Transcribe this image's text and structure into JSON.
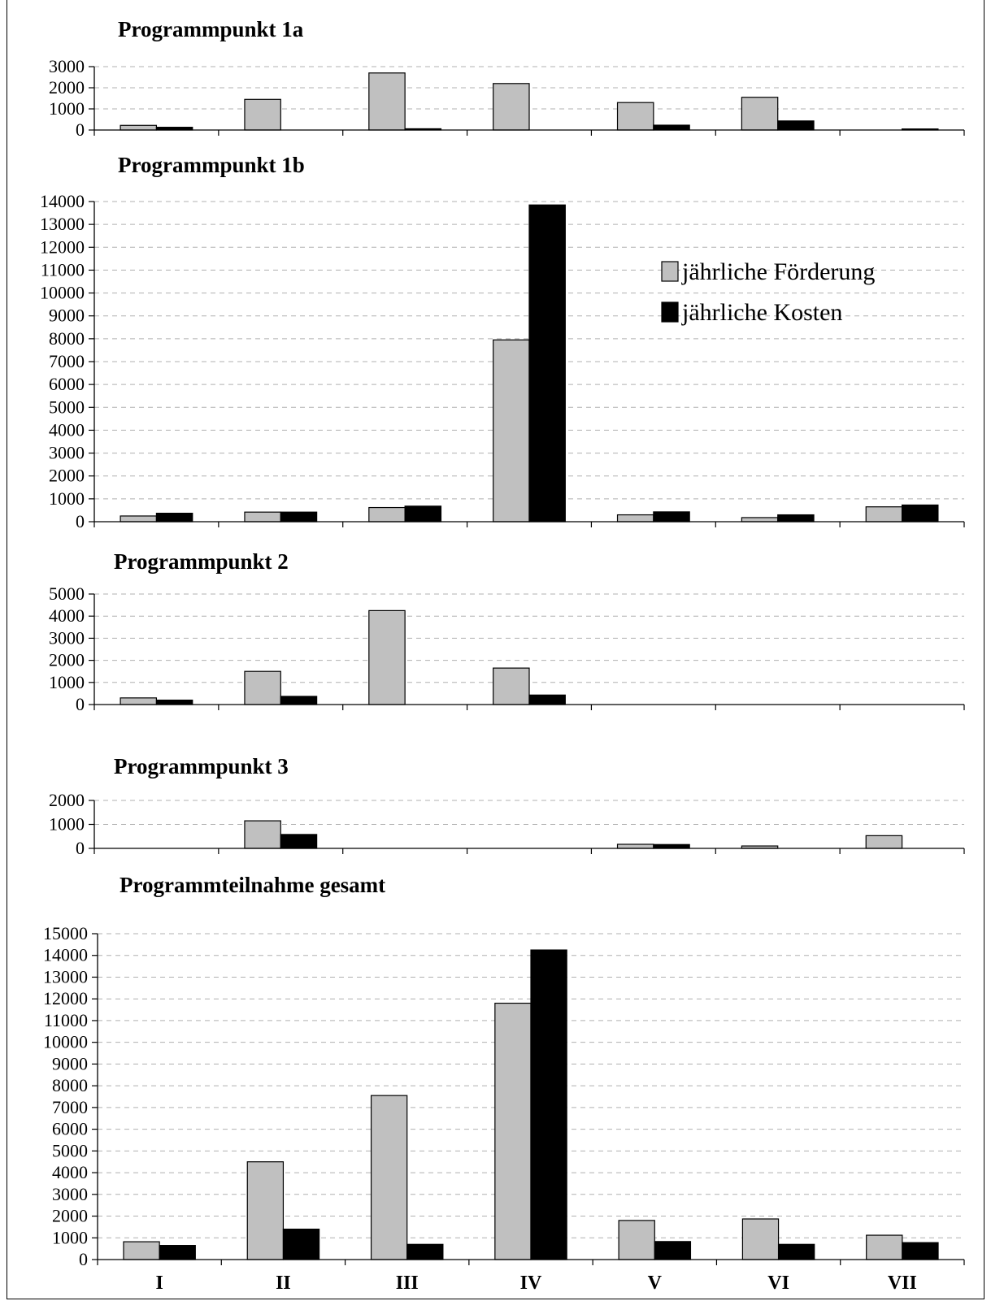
{
  "legend": {
    "items": [
      {
        "label": "jährliche Förderung",
        "color": "#c0c0c0"
      },
      {
        "label": "jährliche Kosten",
        "color": "#000000"
      }
    ],
    "placement": "inside-right of panel 2"
  },
  "chart_data": [
    {
      "type": "bar",
      "title": "Programmpunkt 1a",
      "categories": [
        "I",
        "II",
        "III",
        "IV",
        "V",
        "VI",
        "VII"
      ],
      "series": [
        {
          "name": "jährliche Förderung",
          "values": [
            220,
            1450,
            2700,
            2200,
            1300,
            1550,
            0
          ]
        },
        {
          "name": "jährliche Kosten",
          "values": [
            130,
            0,
            60,
            0,
            230,
            430,
            50
          ]
        }
      ],
      "ylim": [
        0,
        3000
      ],
      "yticks": [
        0,
        1000,
        2000,
        3000
      ],
      "grid": true
    },
    {
      "type": "bar",
      "title": "Programmpunkt 1b",
      "categories": [
        "I",
        "II",
        "III",
        "IV",
        "V",
        "VI",
        "VII"
      ],
      "series": [
        {
          "name": "jährliche Förderung",
          "values": [
            250,
            420,
            620,
            7950,
            300,
            180,
            650
          ]
        },
        {
          "name": "jährliche Kosten",
          "values": [
            370,
            420,
            680,
            13850,
            430,
            300,
            730
          ]
        }
      ],
      "ylim": [
        0,
        14000
      ],
      "yticks": [
        0,
        1000,
        2000,
        3000,
        4000,
        5000,
        6000,
        7000,
        8000,
        9000,
        10000,
        11000,
        12000,
        13000,
        14000
      ],
      "grid": true
    },
    {
      "type": "bar",
      "title": "Programmpunkt 2",
      "categories": [
        "I",
        "II",
        "III",
        "IV",
        "V",
        "VI",
        "VII"
      ],
      "series": [
        {
          "name": "jährliche Förderung",
          "values": [
            300,
            1500,
            4250,
            1650,
            0,
            0,
            0
          ]
        },
        {
          "name": "jährliche Kosten",
          "values": [
            200,
            370,
            0,
            430,
            0,
            0,
            0
          ]
        }
      ],
      "ylim": [
        0,
        5000
      ],
      "yticks": [
        0,
        1000,
        2000,
        3000,
        4000,
        5000
      ],
      "grid": true
    },
    {
      "type": "bar",
      "title": "Programmpunkt 3",
      "categories": [
        "I",
        "II",
        "III",
        "IV",
        "V",
        "VI",
        "VII"
      ],
      "series": [
        {
          "name": "jährliche Förderung",
          "values": [
            0,
            1150,
            0,
            0,
            170,
            100,
            530
          ]
        },
        {
          "name": "jährliche Kosten",
          "values": [
            0,
            580,
            0,
            0,
            160,
            0,
            0
          ]
        }
      ],
      "ylim": [
        0,
        2000
      ],
      "yticks": [
        0,
        1000,
        2000
      ],
      "grid": true
    },
    {
      "type": "bar",
      "title": "Programmteilnahme gesamt",
      "categories": [
        "I",
        "II",
        "III",
        "IV",
        "V",
        "VI",
        "VII"
      ],
      "series": [
        {
          "name": "jährliche Förderung",
          "values": [
            820,
            4500,
            7550,
            11800,
            1800,
            1870,
            1120
          ]
        },
        {
          "name": "jährliche Kosten",
          "values": [
            650,
            1400,
            700,
            14250,
            830,
            700,
            780
          ]
        }
      ],
      "ylim": [
        0,
        15000
      ],
      "yticks": [
        0,
        1000,
        2000,
        3000,
        4000,
        5000,
        6000,
        7000,
        8000,
        9000,
        10000,
        11000,
        12000,
        13000,
        14000,
        15000
      ],
      "grid": true
    }
  ]
}
